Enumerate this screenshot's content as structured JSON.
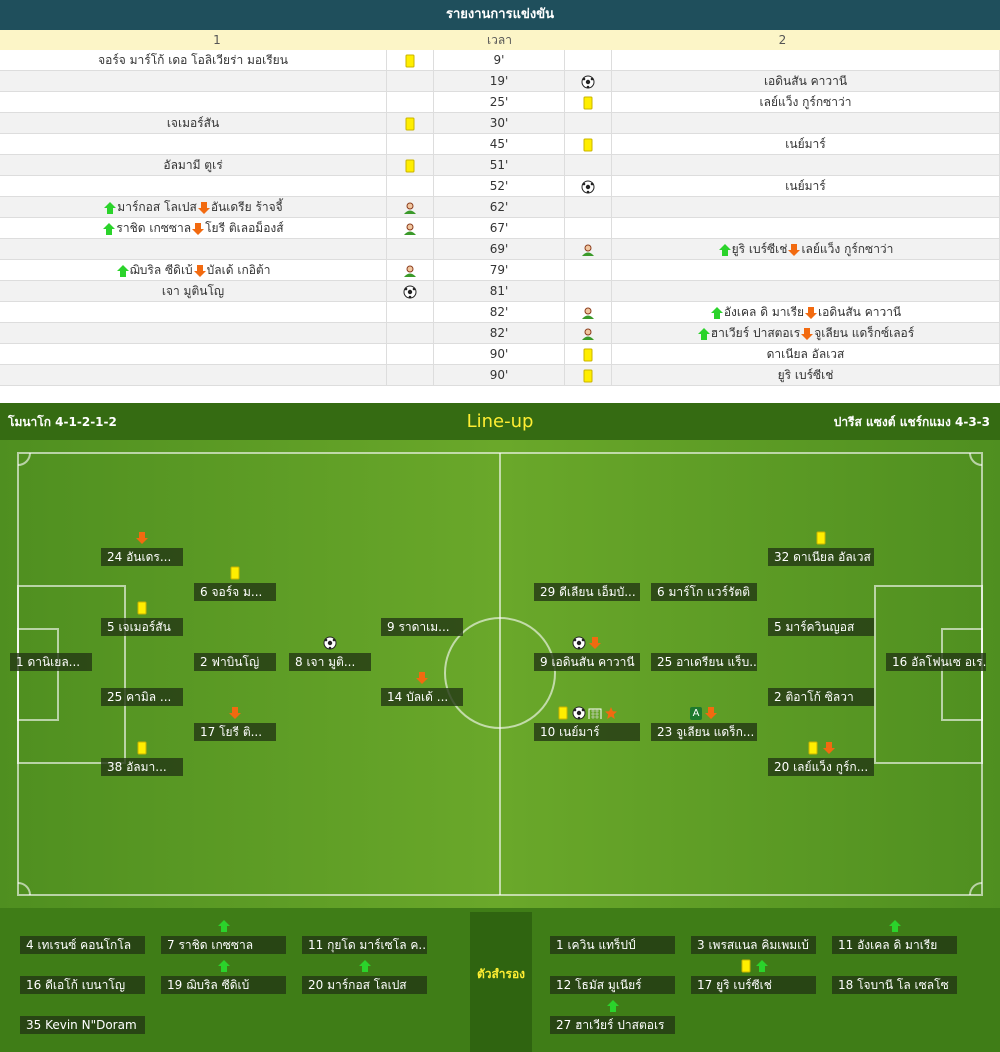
{
  "report": {
    "title": "รายงานการแข่งขัน",
    "headers": [
      "1",
      "เวลา",
      "2"
    ],
    "events": [
      {
        "time": "9'",
        "side": "home",
        "icon": "yellow-card",
        "player": "จอร์จ มาร์โก้ เดอ โอลิเวียร่า มอเรียน"
      },
      {
        "time": "19'",
        "side": "away",
        "icon": "goal",
        "player": "เอดินสัน คาวานี"
      },
      {
        "time": "25'",
        "side": "away",
        "icon": "yellow-card",
        "player": "เลย์แว็ง กูร์กซาว่า"
      },
      {
        "time": "30'",
        "side": "home",
        "icon": "yellow-card",
        "player": "เจเมอร์สัน"
      },
      {
        "time": "45'",
        "side": "away",
        "icon": "yellow-card",
        "player": "เนย์มาร์"
      },
      {
        "time": "51'",
        "side": "home",
        "icon": "yellow-card",
        "player": "อัลมามี ตูเร่"
      },
      {
        "time": "52'",
        "side": "away",
        "icon": "goal",
        "player": "เนย์มาร์"
      },
      {
        "time": "62'",
        "side": "home",
        "icon": "substitution",
        "in": "มาร์กอส โลเปส",
        "out": "อันเดรีย ร้าจจี้"
      },
      {
        "time": "67'",
        "side": "home",
        "icon": "substitution",
        "in": "ราชิด เกซซาล",
        "out": "โยรี ติเลอม็องส์"
      },
      {
        "time": "69'",
        "side": "away",
        "icon": "substitution",
        "in": "ยูริ เบร์ซีเช่",
        "out": "เลย์แว็ง กูร์กซาว่า"
      },
      {
        "time": "79'",
        "side": "home",
        "icon": "substitution",
        "in": "ฌิบริล ซีดิเบ้",
        "out": "บัลเด้ เกอิต้า"
      },
      {
        "time": "81'",
        "side": "home",
        "icon": "goal",
        "player": "เจา มูตินโญ"
      },
      {
        "time": "82'",
        "side": "away",
        "icon": "substitution",
        "in": "อังเคล ดิ มาเรีย",
        "out": "เอดินสัน คาวานี"
      },
      {
        "time": "82'",
        "side": "away",
        "icon": "substitution",
        "in": "ฮาเวียร์ ปาสตอเร",
        "out": "จูเลียน แดร็กซ์เลอร์"
      },
      {
        "time": "90'",
        "side": "away",
        "icon": "yellow-card",
        "player": "ดาเนียล อัลเวส"
      },
      {
        "time": "90'",
        "side": "away",
        "icon": "yellow-card",
        "player": "ยูริ เบร์ซีเช่"
      }
    ]
  },
  "lineup": {
    "title": "Line-up",
    "home_team": "โมนาโก 4-1-2-1-2",
    "away_team": "ปารีส แซงต์ แชร์กแมง 4-3-3",
    "home_players": [
      {
        "label": "1 ดานิเยล...",
        "icons": []
      },
      {
        "label": "24 อันเดร...",
        "icons": [
          "sub-out"
        ]
      },
      {
        "label": "5 เจเมอร์สัน",
        "icons": [
          "yellow-card"
        ]
      },
      {
        "label": "25 คามิล ...",
        "icons": []
      },
      {
        "label": "38 อัลมา...",
        "icons": [
          "yellow-card"
        ]
      },
      {
        "label": "6 จอร์จ ม...",
        "icons": [
          "yellow-card"
        ]
      },
      {
        "label": "2 ฟาบินโญ่",
        "icons": []
      },
      {
        "label": "17 โยรี ติ...",
        "icons": [
          "sub-out"
        ]
      },
      {
        "label": "8 เจา มูติ...",
        "icons": [
          "goal"
        ]
      },
      {
        "label": "9 ราดาเม...",
        "icons": []
      },
      {
        "label": "14 บัลเด้ ...",
        "icons": [
          "sub-out"
        ]
      }
    ],
    "away_players": [
      {
        "label": "16 อัลโฟนเซ อเร...",
        "icons": []
      },
      {
        "label": "32 ดาเนียล อัลเวส",
        "icons": [
          "yellow-card"
        ]
      },
      {
        "label": "5 มาร์ควินญอส",
        "icons": []
      },
      {
        "label": "2 ติอาโก้ ซิลวา",
        "icons": []
      },
      {
        "label": "20 เลย์แว็ง กูร์ก...",
        "icons": [
          "yellow-card",
          "sub-out"
        ]
      },
      {
        "label": "29 ดีเลียน เอ็มบั...",
        "icons": []
      },
      {
        "label": "6 มาร์โก แวร์รัตติ",
        "icons": []
      },
      {
        "label": "9 เอดินสัน คาวานี",
        "icons": [
          "goal",
          "sub-out"
        ]
      },
      {
        "label": "25 อาเดรียน แร็บ...",
        "icons": []
      },
      {
        "label": "10 เนย์มาร์",
        "icons": [
          "yellow-card",
          "goal",
          "assist",
          "star"
        ]
      },
      {
        "label": "23 จูเลียน แดร็ก...",
        "captain": "A",
        "icons": [
          "sub-out"
        ]
      }
    ],
    "bench_title": "ตัวสำรอง",
    "home_bench": [
      {
        "label": "4 เทเรนซ์ คอนโกโล",
        "icons": []
      },
      {
        "label": "7 ราชิด เกซซาล",
        "icons": [
          "sub-in"
        ]
      },
      {
        "label": "11 กุยโด มาร์เซโล ค...",
        "icons": []
      },
      {
        "label": "16 ดีเอโก้ เบนาโญ",
        "icons": []
      },
      {
        "label": "19 ฌิบริล ซีดิเบ้",
        "icons": [
          "sub-in"
        ]
      },
      {
        "label": "20 มาร์กอส โลเปส",
        "icons": [
          "sub-in"
        ]
      },
      {
        "label": "35 Kevin N\"Doram",
        "icons": []
      }
    ],
    "away_bench": [
      {
        "label": "1 เควิน แทร็ปป์",
        "icons": []
      },
      {
        "label": "3 เพรสแนล คิมเพมเบ้",
        "icons": []
      },
      {
        "label": "11 อังเคล ดิ มาเรีย",
        "icons": [
          "sub-in"
        ]
      },
      {
        "label": "12 โธมัส มูเนียร์",
        "icons": []
      },
      {
        "label": "17 ยูริ เบร์ซีเช่",
        "icons": [
          "yellow-card",
          "sub-in"
        ]
      },
      {
        "label": "18 โจบานี โล เซลโซ",
        "icons": []
      },
      {
        "label": "27 ฮาเวียร์ ปาสตอเร",
        "icons": [
          "sub-in"
        ]
      }
    ]
  }
}
